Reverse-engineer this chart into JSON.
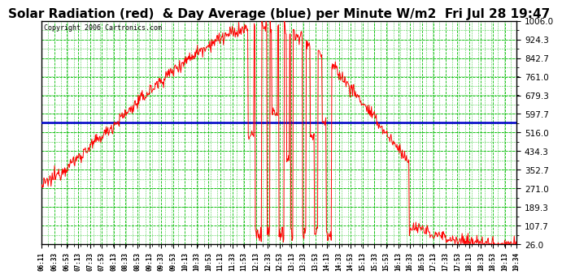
{
  "title": "Solar Radiation (red)  & Day Average (blue) per Minute W/m2  Fri Jul 28 19:47",
  "copyright": "Copyright 2006 Cartronics.com",
  "yticks": [
    26.0,
    107.7,
    189.3,
    271.0,
    352.7,
    434.3,
    516.0,
    597.7,
    679.3,
    761.0,
    842.7,
    924.3,
    1006.0
  ],
  "ymin": 26.0,
  "ymax": 1006.0,
  "day_average": 562.0,
  "bg_color": "#ffffff",
  "plot_bg_color": "#ffffff",
  "grid_color": "#00bb00",
  "line_color": "#ff0000",
  "avg_line_color": "#0000cc",
  "title_fontsize": 11,
  "xtick_labels": [
    "06:11",
    "06:33",
    "06:53",
    "07:13",
    "07:33",
    "07:53",
    "08:13",
    "08:33",
    "08:53",
    "09:13",
    "09:33",
    "09:53",
    "10:13",
    "10:33",
    "10:53",
    "11:13",
    "11:33",
    "11:53",
    "12:13",
    "12:33",
    "12:53",
    "13:13",
    "13:33",
    "13:53",
    "14:13",
    "14:33",
    "14:53",
    "15:13",
    "15:33",
    "15:53",
    "16:13",
    "16:33",
    "16:53",
    "17:13",
    "17:33",
    "17:53",
    "18:13",
    "18:33",
    "18:53",
    "19:13",
    "19:34"
  ],
  "n_points": 803
}
